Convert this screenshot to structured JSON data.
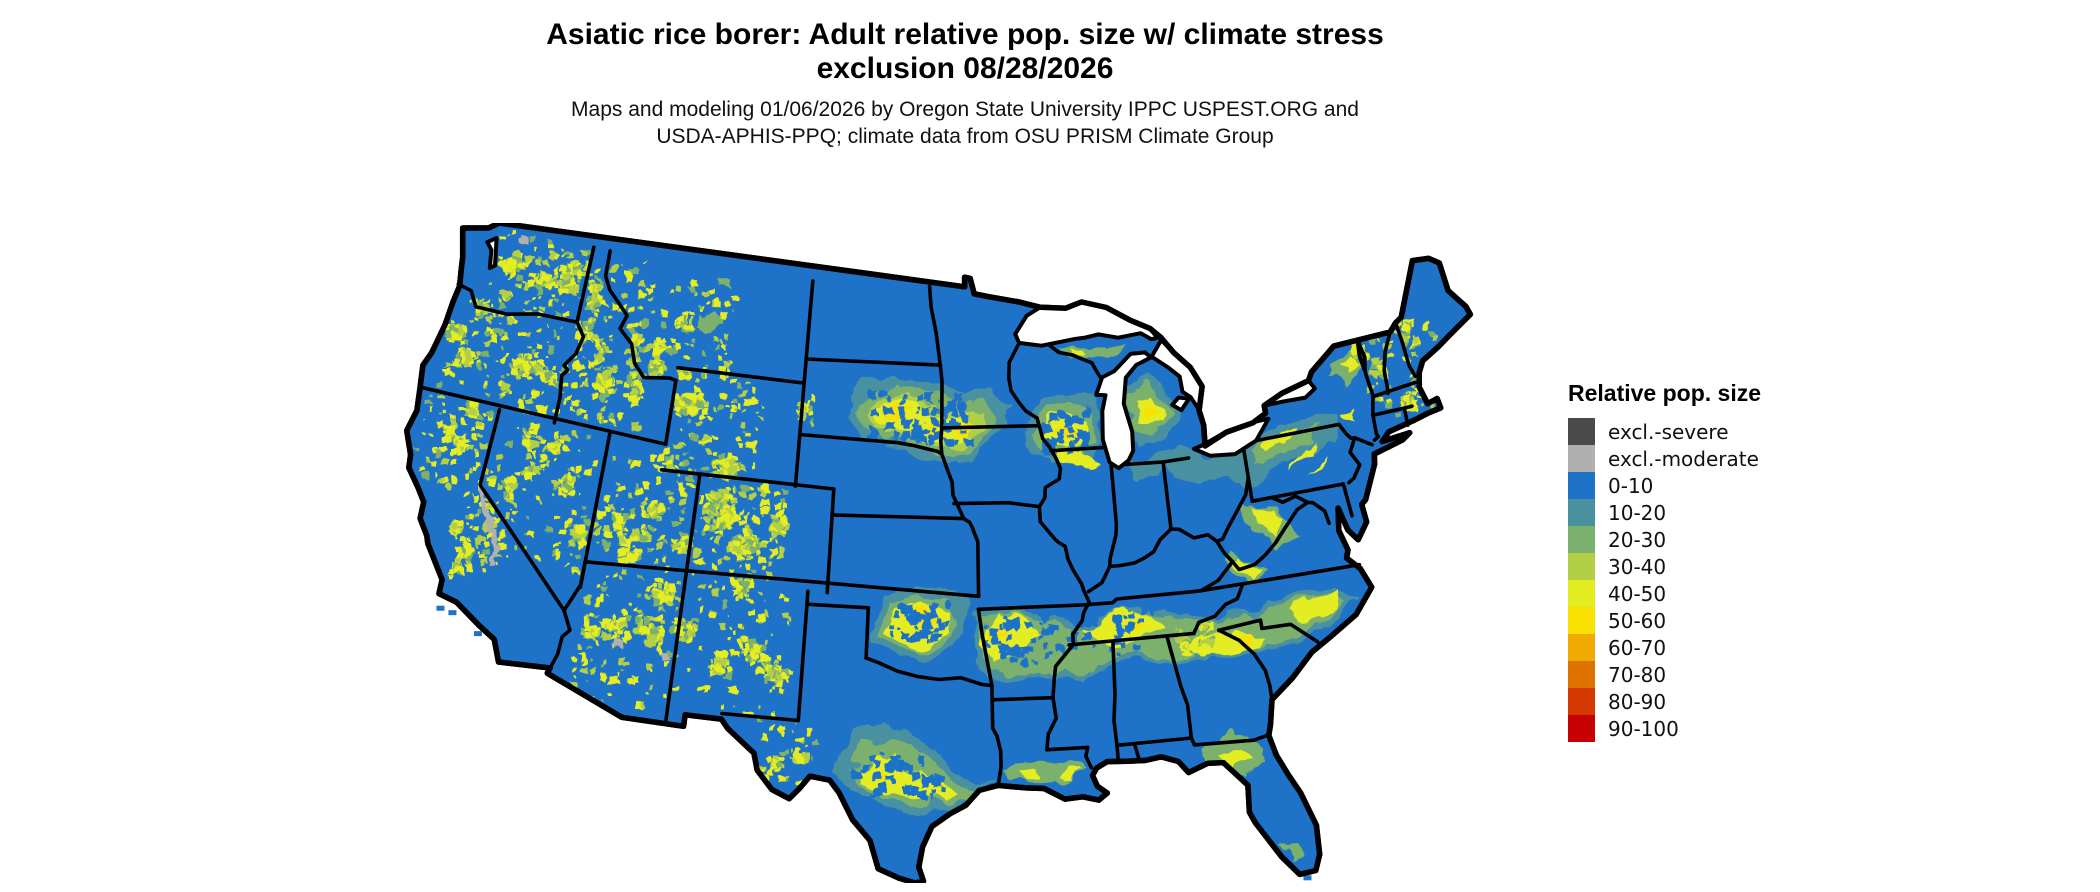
{
  "title": {
    "line1": "Asiatic rice borer: Adult relative pop. size w/ climate stress",
    "line2": "exclusion 08/28/2026"
  },
  "subtitle": {
    "line1": "Maps and modeling 01/06/2026 by Oregon State University IPPC USPEST.ORG and",
    "line2": "USDA-APHIS-PPQ; climate data from OSU PRISM Climate Group"
  },
  "legend": {
    "title": "Relative pop. size",
    "items": [
      {
        "label": "excl.-severe",
        "color": "#4a4a4a"
      },
      {
        "label": "excl.-moderate",
        "color": "#b0b0b0"
      },
      {
        "label": "0-10",
        "color": "#1e72c8"
      },
      {
        "label": "10-20",
        "color": "#4a91a0"
      },
      {
        "label": "20-30",
        "color": "#7cb06d"
      },
      {
        "label": "30-40",
        "color": "#b2cf45"
      },
      {
        "label": "40-50",
        "color": "#e4ec22"
      },
      {
        "label": "50-60",
        "color": "#f8e000"
      },
      {
        "label": "60-70",
        "color": "#efab04"
      },
      {
        "label": "70-80",
        "color": "#df7300"
      },
      {
        "label": "80-90",
        "color": "#d33800"
      },
      {
        "label": "90-100",
        "color": "#c70003"
      }
    ]
  },
  "map": {
    "region": "Continental United States",
    "land_base": "#1e72c8",
    "border": "#000000",
    "water": "#ffffff"
  }
}
